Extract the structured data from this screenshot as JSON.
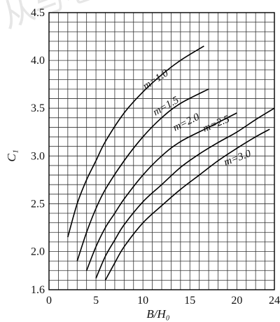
{
  "chart_data": {
    "type": "line",
    "xlabel": "B/H₀",
    "ylabel": "C₁",
    "xlim": [
      0,
      24
    ],
    "ylim": [
      1.6,
      4.5
    ],
    "xticks": [
      0,
      5,
      10,
      15,
      20,
      24
    ],
    "yticks": [
      1.6,
      2.0,
      2.5,
      3.0,
      3.5,
      4.0,
      4.5
    ],
    "ytick_labels": [
      "1.6",
      "2.0",
      "2.5",
      "3.0",
      "3.5",
      "4.0",
      "4.5"
    ],
    "grid": true,
    "watermark": "从与老师 浏览",
    "series": [
      {
        "name": "m=1.0",
        "label": "m=1.0",
        "x": [
          2,
          3,
          4,
          5,
          6,
          8,
          10,
          12,
          14,
          16.5
        ],
        "y": [
          2.15,
          2.5,
          2.75,
          2.95,
          3.15,
          3.45,
          3.67,
          3.85,
          4.0,
          4.15
        ]
      },
      {
        "name": "m=1.5",
        "label": "m=1.5",
        "x": [
          3,
          4,
          5,
          6,
          8,
          10,
          12,
          14,
          17
        ],
        "y": [
          1.9,
          2.2,
          2.45,
          2.65,
          2.95,
          3.2,
          3.4,
          3.55,
          3.7
        ]
      },
      {
        "name": "m=2.0",
        "label": "m=2.0",
        "x": [
          4,
          5,
          6,
          7,
          8,
          10,
          12,
          14,
          17,
          20
        ],
        "y": [
          1.8,
          2.05,
          2.25,
          2.4,
          2.55,
          2.8,
          3.0,
          3.15,
          3.3,
          3.45
        ]
      },
      {
        "name": "m=2.5",
        "label": "m=2.5",
        "x": [
          5,
          6,
          7,
          8,
          10,
          12,
          14,
          16,
          18,
          20,
          22,
          24
        ],
        "y": [
          1.72,
          1.95,
          2.12,
          2.28,
          2.52,
          2.7,
          2.88,
          3.02,
          3.14,
          3.25,
          3.38,
          3.5
        ]
      },
      {
        "name": "m=3.0",
        "label": "m=3.0",
        "x": [
          6,
          7,
          8,
          10,
          12,
          14,
          16,
          18,
          20,
          22,
          23.5
        ],
        "y": [
          1.7,
          1.88,
          2.05,
          2.3,
          2.48,
          2.65,
          2.8,
          2.95,
          3.08,
          3.2,
          3.28
        ]
      }
    ]
  }
}
